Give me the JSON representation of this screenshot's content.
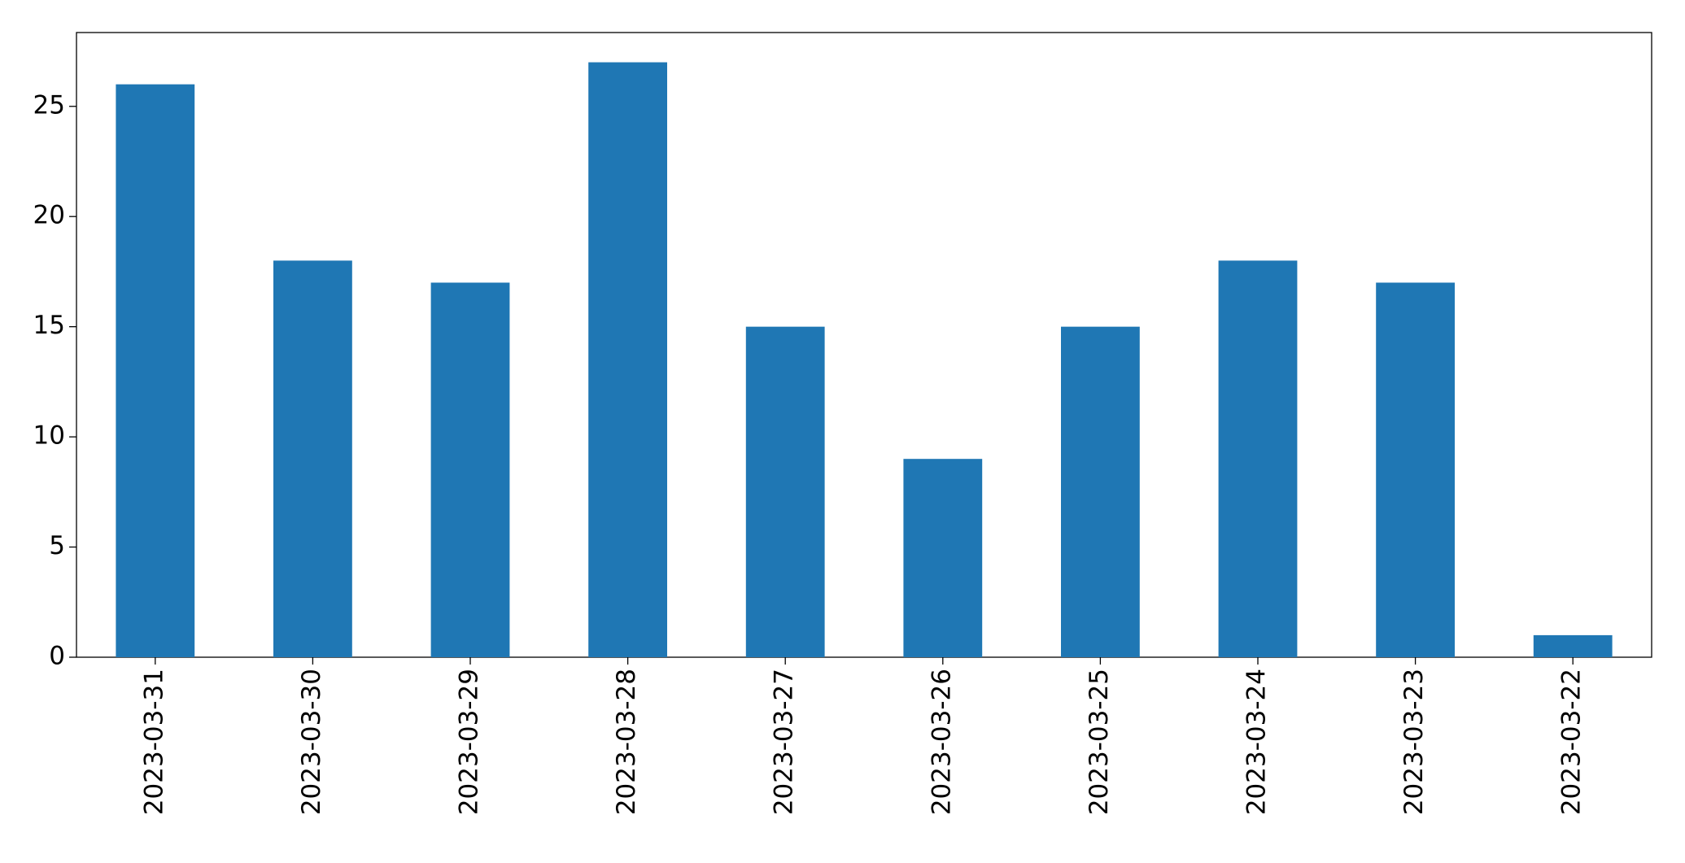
{
  "chart_data": {
    "type": "bar",
    "categories": [
      "2023-03-31",
      "2023-03-30",
      "2023-03-29",
      "2023-03-28",
      "2023-03-27",
      "2023-03-26",
      "2023-03-25",
      "2023-03-24",
      "2023-03-23",
      "2023-03-22"
    ],
    "values": [
      26,
      18,
      17,
      27,
      15,
      9,
      15,
      18,
      17,
      1
    ],
    "color": "#1f77b4",
    "ylim": [
      0,
      28.35
    ],
    "yticks": [
      0,
      5,
      10,
      15,
      20,
      25
    ],
    "grid": false
  }
}
